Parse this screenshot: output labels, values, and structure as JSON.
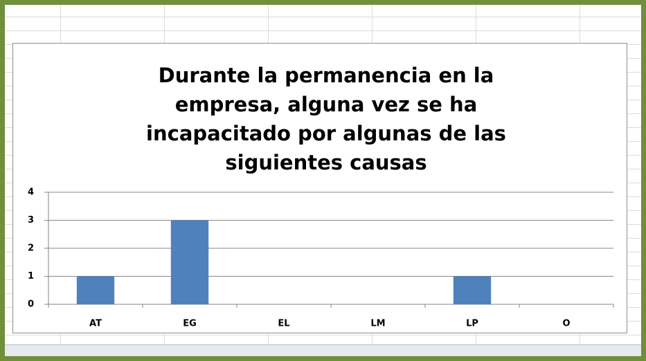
{
  "chart_data": {
    "type": "bar",
    "title": [
      "Durante la permanencia en la",
      "empresa, alguna vez se ha",
      "incapacitado por algunas de las",
      "siguientes causas"
    ],
    "categories": [
      "AT",
      "EG",
      "EL",
      "LM",
      "LP",
      "O"
    ],
    "values": [
      1,
      3,
      0,
      0,
      1,
      0
    ],
    "color": "#4f81bd",
    "ylim": [
      0,
      4
    ],
    "yticks": [
      0,
      1,
      2,
      3,
      4
    ],
    "grid": true
  }
}
